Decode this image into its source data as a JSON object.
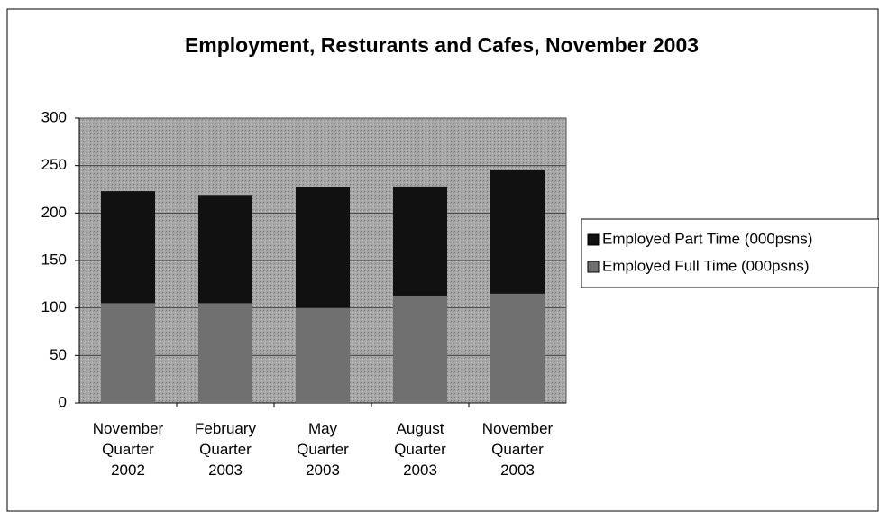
{
  "chart_data": {
    "type": "stacked-bar",
    "title": "Employment, Resturants and Cafes, November 2003",
    "categories": [
      "November Quarter 2002",
      "February Quarter 2003",
      "May Quarter 2003",
      "August Quarter 2003",
      "November Quarter 2003"
    ],
    "series": [
      {
        "name": "Employed Full Time (000psns)",
        "color": "#707070",
        "values": [
          105,
          105,
          100,
          113,
          115
        ]
      },
      {
        "name": "Employed Part Time (000psns)",
        "color": "#111111",
        "values": [
          118,
          114,
          127,
          115,
          130
        ]
      }
    ],
    "ylim": [
      0,
      300
    ],
    "yticks": [
      0,
      50,
      100,
      150,
      200,
      250,
      300
    ],
    "grid": true,
    "legend": "right"
  }
}
